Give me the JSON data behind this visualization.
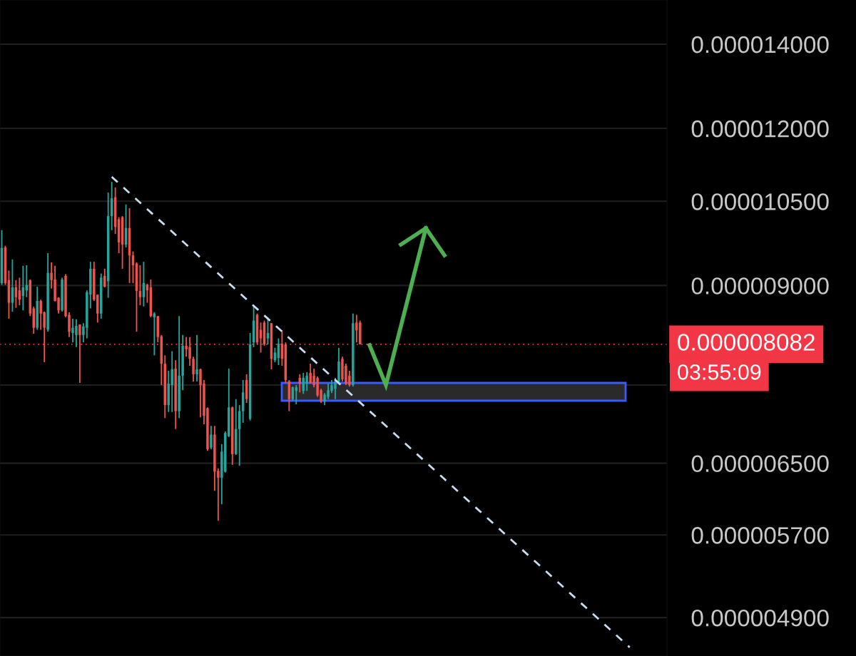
{
  "chart_data": {
    "type": "candlestick",
    "categories": [
      null,
      null,
      null,
      null,
      null,
      null,
      null,
      null,
      null,
      null,
      null,
      null,
      null,
      null,
      null,
      null,
      null,
      null,
      null,
      null,
      null,
      null,
      null,
      null,
      null,
      null,
      null,
      null,
      null,
      null,
      null,
      null,
      null,
      null,
      null,
      null,
      null,
      null,
      null,
      null,
      null,
      null,
      null,
      null,
      null,
      null,
      null,
      null,
      null,
      null,
      null,
      null,
      null,
      null,
      null,
      null,
      null,
      null,
      null,
      null,
      null,
      null,
      null,
      null,
      null,
      null,
      null,
      null,
      null,
      null,
      null,
      null,
      null,
      null,
      null,
      null,
      null,
      null,
      null,
      null,
      null,
      null,
      null,
      null,
      null,
      null,
      null,
      null,
      null,
      null,
      null,
      null,
      null,
      null,
      null,
      null,
      null,
      null,
      null,
      null,
      null,
      null,
      null,
      null,
      null,
      null,
      null,
      null,
      null,
      null,
      null,
      null,
      null,
      null,
      null,
      null,
      null,
      null,
      null,
      null,
      null,
      null,
      null,
      null,
      null,
      null,
      null,
      null,
      null,
      null,
      null,
      null,
      null,
      null,
      null,
      null,
      null,
      null,
      null,
      null,
      null,
      null,
      null,
      null,
      null,
      null,
      null,
      null,
      null,
      null,
      null,
      null,
      null,
      null,
      null,
      null,
      null,
      null,
      null,
      null,
      null,
      null,
      null,
      null,
      null,
      null,
      null,
      null,
      null,
      null,
      null,
      null,
      null,
      null,
      null,
      null,
      null,
      null,
      null,
      null,
      null,
      null,
      null,
      null,
      null,
      null,
      null,
      null
    ],
    "ohlc": [
      [
        9.04e-06,
        9.96e-06,
        9.01e-06,
        9.64e-06
      ],
      [
        9.65e-06,
        9.68e-06,
        9.01e-06,
        9.04e-06
      ],
      [
        9.09e-06,
        9.25e-06,
        8.47e-06,
        8.72e-06
      ],
      [
        8.72e-06,
        9.44e-06,
        8.58e-06,
        8.97e-06
      ],
      [
        8.97e-06,
        9.09e-06,
        8.64e-06,
        8.81e-06
      ],
      [
        8.92e-06,
        9.13e-06,
        8.68e-06,
        8.77e-06
      ],
      [
        8.83e-06,
        9.33e-06,
        8.6e-06,
        8.97e-06
      ],
      [
        8.92e-06,
        9.34e-06,
        8.81e-06,
        9.01e-06
      ],
      [
        9.09e-06,
        9.1e-06,
        8.51e-06,
        8.55e-06
      ],
      [
        8.63e-06,
        8.66e-06,
        8.24e-06,
        8.33e-06
      ],
      [
        8.33e-06,
        8.98e-06,
        8.3e-06,
        8.75e-06
      ],
      [
        8.75e-06,
        8.77e-06,
        8.3e-06,
        8.55e-06
      ],
      [
        8.57e-06,
        8.58e-06,
        7.82e-06,
        8.33e-06
      ],
      [
        8.3e-06,
        9.55e-06,
        8.27e-06,
        9.21e-06
      ],
      [
        9.21e-06,
        9.39e-06,
        8.95e-06,
        9.09e-06
      ],
      [
        9.1e-06,
        9.33e-06,
        8.74e-06,
        8.75e-06
      ],
      [
        8.8e-06,
        8.81e-06,
        8.55e-06,
        8.6e-06
      ],
      [
        8.6e-06,
        9.13e-06,
        8.58e-06,
        9.1e-06
      ],
      [
        9.16e-06,
        9.19e-06,
        8.49e-06,
        8.51e-06
      ],
      [
        8.53e-06,
        8.57e-06,
        8.19e-06,
        8.27e-06
      ],
      [
        8.25e-06,
        8.47e-06,
        8.11e-06,
        8.33e-06
      ],
      [
        8.22e-06,
        8.46e-06,
        8.04e-06,
        8.36e-06
      ],
      [
        8.38e-06,
        8.38e-06,
        7.53e-06,
        8.22e-06
      ],
      [
        8.22e-06,
        8.4e-06,
        8.11e-06,
        8.35e-06
      ],
      [
        8.33e-06,
        8.92e-06,
        8.17e-06,
        8.89e-06
      ],
      [
        8.85e-06,
        9.4e-06,
        8.63e-06,
        9.28e-06
      ],
      [
        9.28e-06,
        9.4e-06,
        8.75e-06,
        8.77e-06
      ],
      [
        8.85e-06,
        8.85e-06,
        8.41e-06,
        8.55e-06
      ],
      [
        8.55e-06,
        9.2e-06,
        8.47e-06,
        9.13e-06
      ],
      [
        9.16e-06,
        9.28e-06,
        8.97e-06,
        8.98e-06
      ],
      [
        9.07e-06,
        1.067e-05,
        8.8e-06,
        1.022e-05
      ],
      [
        1.022e-05,
        1.088e-05,
        9.96e-06,
        1.056e-05
      ],
      [
        1.058e-05,
        1.077e-05,
        9.89e-06,
        1.002e-05
      ],
      [
        1.016e-05,
        1.02e-05,
        9.55e-06,
        9.74e-06
      ],
      [
        1.02e-05,
        1.022e-05,
        9.28e-06,
        9.7e-06
      ],
      [
        9.7e-06,
        1.044e-05,
        9.65e-06,
        1e-05
      ],
      [
        1e-05,
        1.037e-05,
        9.04e-06,
        9.51e-06
      ],
      [
        9.51e-06,
        9.58e-06,
        9.04e-06,
        9.34e-06
      ],
      [
        9.37e-06,
        9.39e-06,
        8.27e-06,
        8.91e-06
      ],
      [
        8.91e-06,
        9.34e-06,
        8.68e-06,
        8.81e-06
      ],
      [
        8.81e-06,
        9.4e-06,
        8.66e-06,
        9.04e-06
      ],
      [
        9.01e-06,
        9.03e-06,
        8.72e-06,
        8.92e-06
      ],
      [
        8.97e-06,
        9.1e-06,
        8.49e-06,
        8.51e-06
      ],
      [
        8.49e-06,
        8.57e-06,
        7.92e-06,
        8.55e-06
      ],
      [
        8.51e-06,
        8.51e-06,
        8.11e-06,
        8.19e-06
      ],
      [
        8.2e-06,
        8.22e-06,
        7.5e-06,
        7.8e-06
      ],
      [
        7.8e-06,
        7.92e-06,
        7.06e-06,
        7.23e-06
      ],
      [
        7.23e-06,
        7.7e-06,
        7.14e-06,
        7.52e-06
      ],
      [
        7.5e-06,
        7.98e-06,
        7.14e-06,
        7.72e-06
      ],
      [
        7.73e-06,
        7.85e-06,
        6.92e-06,
        7.15e-06
      ],
      [
        7.15e-06,
        8.51e-06,
        7.06e-06,
        7.63e-06
      ],
      [
        7.63e-06,
        8.22e-06,
        7.43e-06,
        8.06e-06
      ],
      [
        8.06e-06,
        8.19e-06,
        7.9e-06,
        8.01e-06
      ],
      [
        8.04e-06,
        8.19e-06,
        7.77e-06,
        7.87e-06
      ],
      [
        7.87e-06,
        7.9e-06,
        7.55e-06,
        7.65e-06
      ],
      [
        7.65e-06,
        8.22e-06,
        7.55e-06,
        7.72e-06
      ],
      [
        7.72e-06,
        7.73e-06,
        7.07e-06,
        7.5e-06
      ],
      [
        7.52e-06,
        7.57e-06,
        6.98e-06,
        7.09e-06
      ],
      [
        7.19e-06,
        7.2e-06,
        6.65e-06,
        6.67e-06
      ],
      [
        6.69e-06,
        6.96e-06,
        6.67e-06,
        6.85e-06
      ],
      [
        6.85e-06,
        6.96e-06,
        6.18e-06,
        6.4e-06
      ],
      [
        6.41e-06,
        6.44e-06,
        5.85e-06,
        6.33e-06
      ],
      [
        6.33e-06,
        6.73e-06,
        6.03e-06,
        6.64e-06
      ],
      [
        6.4e-06,
        6.89e-06,
        6.39e-06,
        6.87e-06
      ],
      [
        6.83e-06,
        7.73e-06,
        6.82e-06,
        7.2e-06
      ],
      [
        7.2e-06,
        7.21e-06,
        6.48e-06,
        6.61e-06
      ],
      [
        6.61e-06,
        7.31e-06,
        6.6e-06,
        6.92e-06
      ],
      [
        6.92e-06,
        7.23e-06,
        6.47e-06,
        7.15e-06
      ],
      [
        7.15e-06,
        7.57e-06,
        7e-06,
        7.4e-06
      ],
      [
        7.57e-06,
        7.65e-06,
        7.26e-06,
        7.31e-06
      ],
      [
        7.05e-06,
        8.25e-06,
        7.03e-06,
        8.08e-06
      ],
      [
        8.11e-06,
        8.66e-06,
        8.04e-06,
        8.44e-06
      ],
      [
        8.53e-06,
        8.55e-06,
        8.08e-06,
        8.11e-06
      ],
      [
        8.3e-06,
        8.41e-06,
        7.96e-06,
        8.17e-06
      ],
      [
        8.41e-06,
        8.44e-06,
        8.06e-06,
        8.08e-06
      ],
      [
        8.17e-06,
        8.49e-06,
        8.08e-06,
        8.25e-06
      ],
      [
        8.4e-06,
        8.4e-06,
        7.72e-06,
        7.87e-06
      ],
      [
        7.85e-06,
        8.03e-06,
        7.82e-06,
        7.96e-06
      ],
      [
        7.88e-06,
        8.17e-06,
        7.78e-06,
        8.09e-06
      ],
      [
        8.09e-06,
        8.29e-06,
        7.77e-06,
        7.87e-06
      ],
      [
        8.08e-06,
        8.11e-06,
        7.53e-06,
        7.57e-06
      ],
      [
        7.55e-06,
        7.57e-06,
        7.15e-06,
        7.31e-06
      ],
      [
        7.31e-06,
        7.48e-06,
        7.29e-06,
        7.47e-06
      ],
      [
        7.42e-06,
        7.5e-06,
        7.24e-06,
        7.47e-06
      ],
      [
        7.6e-06,
        7.65e-06,
        7.4e-06,
        7.52e-06
      ],
      [
        7.42e-06,
        7.67e-06,
        7.38e-06,
        7.6e-06
      ],
      [
        7.52e-06,
        7.68e-06,
        7.42e-06,
        7.63e-06
      ],
      [
        7.67e-06,
        7.8e-06,
        7.52e-06,
        7.53e-06
      ],
      [
        7.63e-06,
        7.73e-06,
        7.47e-06,
        7.5e-06
      ],
      [
        7.6e-06,
        7.62e-06,
        7.34e-06,
        7.36e-06
      ],
      [
        7.43e-06,
        7.45e-06,
        7.26e-06,
        7.28e-06
      ],
      [
        7.28e-06,
        7.39e-06,
        7.23e-06,
        7.37e-06
      ],
      [
        7.34e-06,
        7.52e-06,
        7.31e-06,
        7.43e-06
      ],
      [
        7.42e-06,
        7.57e-06,
        7.39e-06,
        7.5e-06
      ],
      [
        7.45e-06,
        7.6e-06,
        7.31e-06,
        7.55e-06
      ],
      [
        7.55e-06,
        8.03e-06,
        7.53e-06,
        7.83e-06
      ],
      [
        7.87e-06,
        7.9e-06,
        7.55e-06,
        7.58e-06
      ],
      [
        7.77e-06,
        7.8e-06,
        7.5e-06,
        7.52e-06
      ],
      [
        7.63e-06,
        7.7e-06,
        7.48e-06,
        7.5e-06
      ],
      [
        7.5e-06,
        8.55e-06,
        7.48e-06,
        8.4e-06
      ],
      [
        8.41e-06,
        8.53e-06,
        8.11e-06,
        8.29e-06
      ],
      [
        8.41e-06,
        8.44e-06,
        8.08e-06,
        8.082e-06
      ],
      null,
      null,
      null,
      null,
      null,
      null,
      null,
      null,
      null,
      null,
      null,
      null,
      null,
      null,
      null,
      null,
      null,
      null,
      null,
      null,
      null,
      null,
      null,
      null,
      null,
      null,
      null,
      null,
      null,
      null,
      null,
      null,
      null,
      null,
      null,
      null,
      null,
      null,
      null,
      null,
      null,
      null,
      null,
      null,
      null,
      null,
      null,
      null,
      null,
      null,
      null,
      null,
      null,
      null,
      null,
      null,
      null,
      null,
      null,
      null,
      null,
      null,
      null,
      null,
      null,
      null,
      null,
      null,
      null,
      null,
      null,
      null,
      null,
      null,
      null,
      null,
      null,
      null,
      null,
      null,
      null,
      null,
      null,
      null,
      null,
      null
    ],
    "colors": [
      "#26a69a",
      "#ef5350",
      "#ef5350",
      "#26a69a",
      "#ef5350",
      "#ef5350",
      "#26a69a",
      "#26a69a",
      "#ef5350",
      "#ef5350",
      "#26a69a",
      "#ef5350",
      "#ef5350",
      "#26a69a",
      "#ef5350",
      "#ef5350",
      "#ef5350",
      "#26a69a",
      "#ef5350",
      "#ef5350",
      "#26a69a",
      "#26a69a",
      "#ef5350",
      "#26a69a",
      "#26a69a",
      "#26a69a",
      "#ef5350",
      "#ef5350",
      "#26a69a",
      "#ef5350",
      "#26a69a",
      "#26a69a",
      "#ef5350",
      "#ef5350",
      "#ef5350",
      "#26a69a",
      "#ef5350",
      "#ef5350",
      "#ef5350",
      "#ef5350",
      "#26a69a",
      "#ef5350",
      "#ef5350",
      "#26a69a",
      "#ef5350",
      "#ef5350",
      "#ef5350",
      "#26a69a",
      "#26a69a",
      "#ef5350",
      "#26a69a",
      "#26a69a",
      "#ef5350",
      "#ef5350",
      "#ef5350",
      "#26a69a",
      "#ef5350",
      "#ef5350",
      "#ef5350",
      "#26a69a",
      "#ef5350",
      "#ef5350",
      "#26a69a",
      "#26a69a",
      "#26a69a",
      "#ef5350",
      "#26a69a",
      "#26a69a",
      "#26a69a",
      "#ef5350",
      "#26a69a",
      "#26a69a",
      "#ef5350",
      "#ef5350",
      "#ef5350",
      "#26a69a",
      "#ef5350",
      "#26a69a",
      "#26a69a",
      "#ef5350",
      "#ef5350",
      "#ef5350",
      "#26a69a",
      "#26a69a",
      "#ef5350",
      "#26a69a",
      "#26a69a",
      "#ef5350",
      "#ef5350",
      "#ef5350",
      "#ef5350",
      "#26a69a",
      "#26a69a",
      "#26a69a",
      "#26a69a",
      "#26a69a",
      "#ef5350",
      "#ef5350",
      "#ef5350",
      "#26a69a",
      "#ef5350",
      "#ef5350",
      null,
      null,
      null,
      null,
      null,
      null,
      null,
      null,
      null,
      null,
      null,
      null,
      null,
      null,
      null,
      null,
      null,
      null,
      null,
      null,
      null,
      null,
      null,
      null,
      null,
      null,
      null,
      null,
      null,
      null,
      null,
      null,
      null,
      null,
      null,
      null,
      null,
      null,
      null,
      null,
      null,
      null,
      null,
      null,
      null,
      null,
      null,
      null,
      null,
      null,
      null,
      null,
      null,
      null,
      null,
      null,
      null,
      null,
      null,
      null,
      null,
      null,
      null,
      null,
      null,
      null,
      null,
      null,
      null,
      null,
      null,
      null,
      null,
      null,
      null,
      null,
      null,
      null,
      null,
      null,
      null,
      null,
      null,
      null,
      null,
      null
    ],
    "series": [
      {
        "type": "line",
        "values": [
          null,
          null,
          null,
          null,
          null,
          null,
          null,
          null,
          null,
          null,
          null,
          null,
          null,
          null,
          null,
          null,
          null,
          null,
          null,
          null,
          null,
          null,
          null,
          null,
          null,
          null,
          null,
          null,
          null,
          null,
          null,
          1.098e-05,
          null,
          null,
          null,
          null,
          null,
          null,
          null,
          null,
          null,
          null,
          null,
          null,
          null,
          null,
          null,
          null,
          null,
          null,
          null,
          null,
          null,
          null,
          null,
          null,
          null,
          null,
          null,
          null,
          null,
          null,
          null,
          null,
          null,
          null,
          null,
          null,
          null,
          null,
          null,
          null,
          null,
          null,
          null,
          null,
          null,
          null,
          null,
          null,
          null,
          null,
          null,
          null,
          null,
          null,
          null,
          null,
          null,
          null,
          null,
          null,
          null,
          null,
          null,
          null,
          null,
          null,
          null,
          null,
          null,
          null,
          null,
          null,
          null,
          null,
          null,
          null,
          null,
          null,
          null,
          null,
          null,
          null,
          null,
          null,
          null,
          null,
          null,
          null,
          null,
          null,
          null,
          null,
          null,
          null,
          null,
          null,
          null,
          null,
          null,
          null,
          null,
          null,
          null,
          null,
          null,
          null,
          null,
          null,
          null,
          null,
          null,
          null,
          null,
          null,
          null,
          null,
          null,
          null,
          null,
          null,
          null,
          null,
          null,
          null,
          null,
          null,
          null,
          null,
          null,
          null,
          null,
          null,
          null,
          null,
          null,
          null,
          null,
          null,
          null,
          null,
          null,
          null,
          null,
          null,
          null,
          4.64e-06,
          null,
          null,
          null,
          null,
          null,
          null,
          null,
          null,
          null,
          null
        ],
        "color": "#c9dcf2",
        "line_style": "dashed"
      }
    ],
    "ref_lines": [
      {
        "axis": "y",
        "value": 8.082e-06,
        "label": "0.000008082",
        "color": "#f23645",
        "line_style": "dotted"
      }
    ],
    "annotations": [
      "03:55:09"
    ],
    "log": true,
    "ylim": [
      4.567e-06,
      1.518e-05
    ],
    "yticks": [
      {
        "value": 4.9e-06,
        "label": "0.000004900"
      },
      {
        "value": 5.7e-06,
        "label": "0.000005700"
      },
      {
        "value": 6.5e-06,
        "label": "0.000006500"
      },
      {
        "value": 7.5e-06,
        "label": null
      },
      {
        "value": 9e-06,
        "label": "0.000009000"
      },
      {
        "value": 1.05e-05,
        "label": "0.000010500"
      },
      {
        "value": 1.2e-05,
        "label": "0.000012000"
      },
      {
        "value": 1.4e-05,
        "label": "0.000014000"
      }
    ],
    "grid": "y",
    "tick_labels": "y"
  }
}
